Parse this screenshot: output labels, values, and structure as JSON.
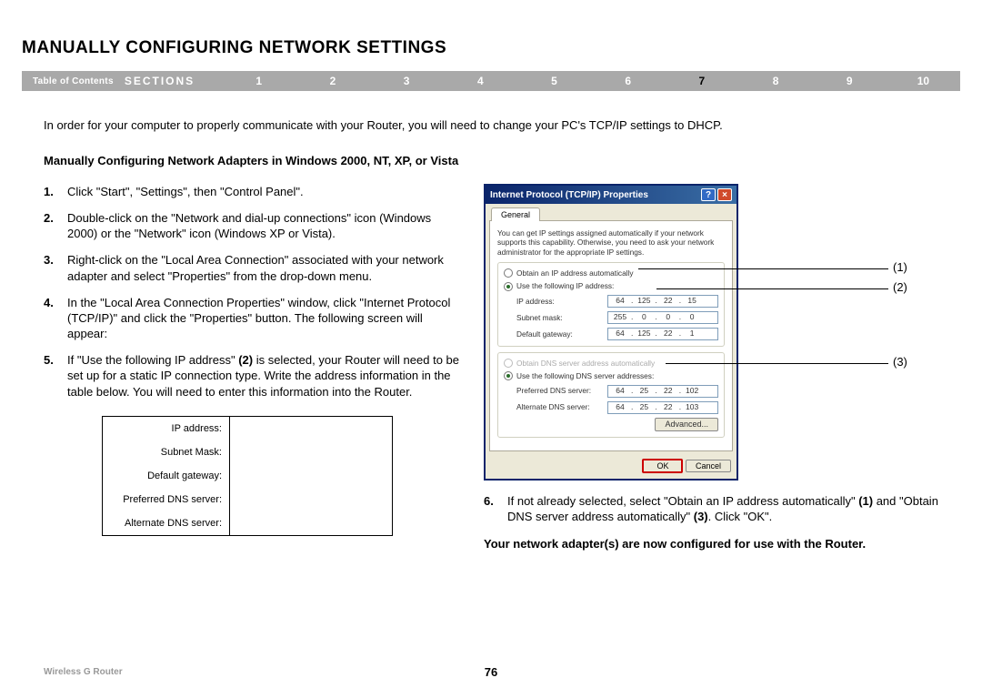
{
  "title": "MANUALLY CONFIGURING NETWORK SETTINGS",
  "nav": {
    "toc": "Table of Contents",
    "sections_label": "SECTIONS",
    "numbers": [
      "1",
      "2",
      "3",
      "4",
      "5",
      "6",
      "7",
      "8",
      "9",
      "10"
    ],
    "active": "7"
  },
  "intro": "In order for your computer to properly communicate with your Router, you will need to change your PC's TCP/IP settings to DHCP.",
  "subhead": "Manually Configuring Network Adapters in Windows 2000, NT, XP, or Vista",
  "steps": {
    "s1": "Click \"Start\", \"Settings\", then \"Control Panel\".",
    "s2": "Double-click on the \"Network and dial-up connections\" icon (Windows 2000) or the \"Network\" icon (Windows XP or Vista).",
    "s3": "Right-click on the \"Local Area Connection\" associated with your network adapter and select \"Properties\" from the drop-down menu.",
    "s4": "In the \"Local Area Connection Properties\" window, click \"Internet Protocol (TCP/IP)\" and click the \"Properties\" button. The following screen will appear:",
    "s5_a": "If \"Use the following IP address\" ",
    "s5_b": "(2)",
    "s5_c": " is selected, your Router will need to be set up for a static IP connection type. Write the address information in the table below. You will need to enter this information into the Router."
  },
  "note_table": {
    "rows": [
      "IP address:",
      "Subnet Mask:",
      "Default gateway:",
      "Preferred DNS server:",
      "Alternate DNS server:"
    ]
  },
  "dialog": {
    "title": "Internet Protocol (TCP/IP) Properties",
    "tab": "General",
    "help": "You can get IP settings assigned automatically if your network supports this capability. Otherwise, you need to ask your network administrator for the appropriate IP settings.",
    "r1": "Obtain an IP address automatically",
    "r2": "Use the following IP address:",
    "lbl_ip": "IP address:",
    "lbl_mask": "Subnet mask:",
    "lbl_gw": "Default gateway:",
    "ip": [
      "64",
      "125",
      "22",
      "15"
    ],
    "mask": [
      "255",
      "0",
      "0",
      "0"
    ],
    "gw": [
      "64",
      "125",
      "22",
      "1"
    ],
    "r3": "Obtain DNS server address automatically",
    "r4": "Use the following DNS server addresses:",
    "lbl_pdns": "Preferred DNS server:",
    "lbl_adns": "Alternate DNS server:",
    "pdns": [
      "64",
      "25",
      "22",
      "102"
    ],
    "adns": [
      "64",
      "25",
      "22",
      "103"
    ],
    "advanced": "Advanced...",
    "ok": "OK",
    "cancel": "Cancel"
  },
  "callouts": {
    "c1": "(1)",
    "c2": "(2)",
    "c3": "(3)"
  },
  "step6_a": "If not already selected, select \"Obtain an IP address automatically\" ",
  "step6_b": "(1)",
  "step6_c": " and \"Obtain DNS server address automatically\" ",
  "step6_d": "(3)",
  "step6_e": ". Click \"OK\".",
  "final": "Your network adapter(s) are now configured for use with the Router.",
  "footer": {
    "product": "Wireless G Router",
    "page": "76"
  }
}
